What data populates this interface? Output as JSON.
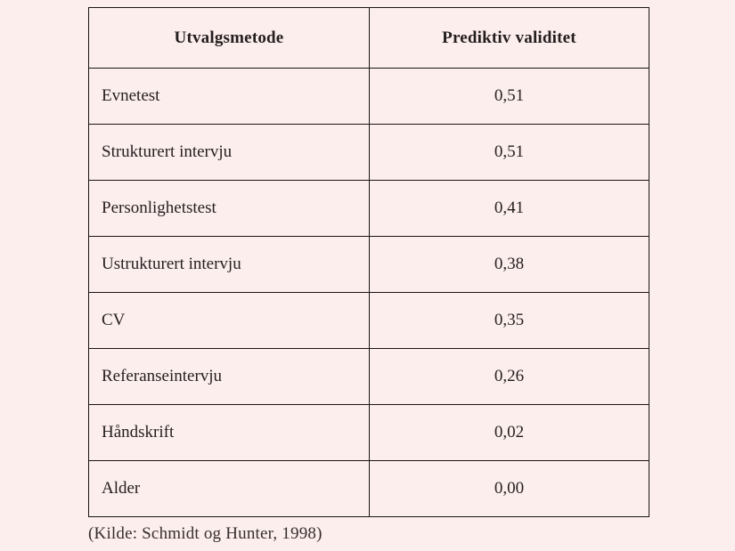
{
  "page": {
    "background_color": "#fceeec",
    "text_color": "#241e20",
    "border_color": "#191416"
  },
  "chart_data": {
    "type": "table",
    "title": "",
    "columns": [
      "Utvalgsmetode",
      "Prediktiv validitet"
    ],
    "rows": [
      [
        "Evnetest",
        "0,51"
      ],
      [
        "Strukturert intervju",
        "0,51"
      ],
      [
        "Personlighetstest",
        "0,41"
      ],
      [
        "Ustrukturert intervju",
        "0,38"
      ],
      [
        "CV",
        "0,35"
      ],
      [
        "Referanseintervju",
        "0,26"
      ],
      [
        "Håndskrift",
        "0,02"
      ],
      [
        "Alder",
        "0,00"
      ]
    ],
    "values": [
      0.51,
      0.51,
      0.41,
      0.38,
      0.35,
      0.26,
      0.02,
      0.0
    ],
    "source": "(Kilde: Schmidt og Hunter, 1998)"
  }
}
